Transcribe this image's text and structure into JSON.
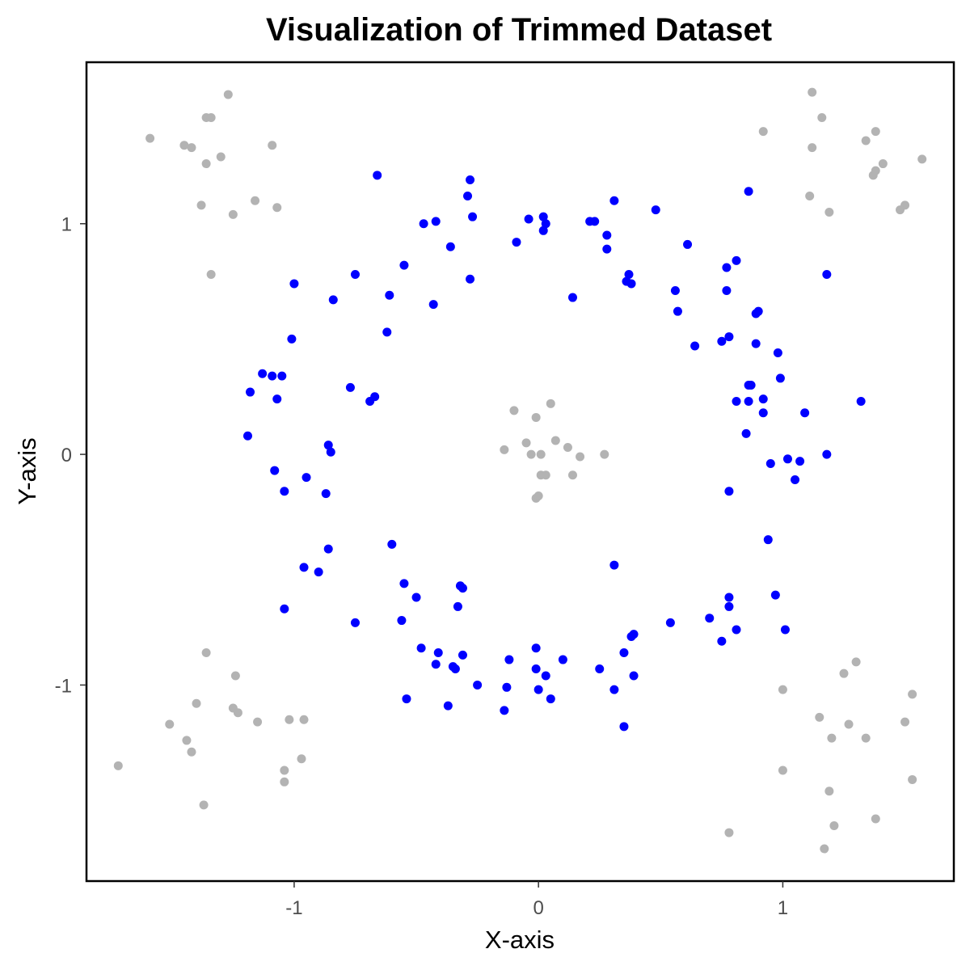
{
  "chart_data": {
    "type": "scatter",
    "title": "Visualization of Trimmed Dataset",
    "xlabel": "X-axis",
    "ylabel": "Y-axis",
    "xlim": [
      -1.85,
      1.7
    ],
    "ylim": [
      -1.85,
      1.7
    ],
    "xticks": [
      -1,
      0,
      1
    ],
    "yticks": [
      -1,
      0,
      1
    ],
    "grid": false,
    "legend": "none",
    "series": [
      {
        "color": "#0000ff",
        "points": [
          [
            -0.66,
            1.21
          ],
          [
            -0.28,
            1.19
          ],
          [
            -0.29,
            1.12
          ],
          [
            -0.27,
            1.03
          ],
          [
            -0.42,
            1.01
          ],
          [
            -0.47,
            1.0
          ],
          [
            -0.36,
            0.9
          ],
          [
            -0.55,
            0.82
          ],
          [
            -0.28,
            0.76
          ],
          [
            -0.75,
            0.78
          ],
          [
            -1.0,
            0.74
          ],
          [
            -0.84,
            0.67
          ],
          [
            -0.61,
            0.69
          ],
          [
            -0.43,
            0.65
          ],
          [
            -0.62,
            0.53
          ],
          [
            -1.01,
            0.5
          ],
          [
            -1.13,
            0.35
          ],
          [
            -1.09,
            0.34
          ],
          [
            -1.05,
            0.34
          ],
          [
            -1.18,
            0.27
          ],
          [
            -1.07,
            0.24
          ],
          [
            -0.77,
            0.29
          ],
          [
            -0.67,
            0.25
          ],
          [
            -0.69,
            0.23
          ],
          [
            -1.19,
            0.08
          ],
          [
            -0.86,
            0.04
          ],
          [
            -0.85,
            0.01
          ],
          [
            -1.08,
            -0.07
          ],
          [
            -0.95,
            -0.1
          ],
          [
            -1.04,
            -0.16
          ],
          [
            -0.87,
            -0.17
          ],
          [
            -0.86,
            -0.41
          ],
          [
            -0.6,
            -0.39
          ],
          [
            -0.96,
            -0.49
          ],
          [
            -0.9,
            -0.51
          ],
          [
            -1.04,
            -0.67
          ],
          [
            -0.75,
            -0.73
          ],
          [
            -0.55,
            -0.56
          ],
          [
            -0.5,
            -0.62
          ],
          [
            -0.56,
            -0.72
          ],
          [
            -0.32,
            -0.57
          ],
          [
            -0.31,
            -0.58
          ],
          [
            -0.33,
            -0.66
          ],
          [
            -0.48,
            -0.84
          ],
          [
            -0.41,
            -0.86
          ],
          [
            -0.42,
            -0.91
          ],
          [
            -0.35,
            -0.92
          ],
          [
            -0.34,
            -0.93
          ],
          [
            -0.31,
            -0.87
          ],
          [
            -0.25,
            -1.0
          ],
          [
            -0.37,
            -1.09
          ],
          [
            -0.54,
            -1.06
          ],
          [
            -0.12,
            -0.89
          ],
          [
            -0.13,
            -1.01
          ],
          [
            -0.14,
            -1.11
          ],
          [
            -0.01,
            -0.84
          ],
          [
            -0.01,
            -0.93
          ],
          [
            0.03,
            -0.96
          ],
          [
            0.0,
            -1.02
          ],
          [
            0.05,
            -1.06
          ],
          [
            0.1,
            -0.89
          ],
          [
            0.25,
            -0.93
          ],
          [
            0.31,
            -1.02
          ],
          [
            0.35,
            -1.18
          ],
          [
            0.35,
            -0.86
          ],
          [
            0.38,
            -0.79
          ],
          [
            0.39,
            -0.78
          ],
          [
            0.39,
            -0.96
          ],
          [
            0.31,
            -0.48
          ],
          [
            0.54,
            -0.73
          ],
          [
            0.7,
            -0.71
          ],
          [
            0.75,
            -0.81
          ],
          [
            0.78,
            -0.62
          ],
          [
            0.78,
            -0.66
          ],
          [
            0.81,
            -0.76
          ],
          [
            0.97,
            -0.61
          ],
          [
            1.01,
            -0.76
          ],
          [
            0.94,
            -0.37
          ],
          [
            0.78,
            -0.16
          ],
          [
            0.95,
            -0.04
          ],
          [
            1.02,
            -0.02
          ],
          [
            1.07,
            -0.03
          ],
          [
            1.05,
            -0.11
          ],
          [
            1.18,
            0.0
          ],
          [
            0.85,
            0.09
          ],
          [
            0.81,
            0.23
          ],
          [
            0.86,
            0.23
          ],
          [
            0.92,
            0.24
          ],
          [
            0.92,
            0.18
          ],
          [
            1.09,
            0.18
          ],
          [
            1.32,
            0.23
          ],
          [
            0.86,
            0.3
          ],
          [
            0.87,
            0.3
          ],
          [
            0.99,
            0.33
          ],
          [
            0.98,
            0.44
          ],
          [
            0.89,
            0.48
          ],
          [
            0.75,
            0.49
          ],
          [
            0.78,
            0.51
          ],
          [
            0.64,
            0.47
          ],
          [
            0.89,
            0.61
          ],
          [
            0.9,
            0.62
          ],
          [
            0.57,
            0.62
          ],
          [
            0.56,
            0.71
          ],
          [
            0.77,
            0.71
          ],
          [
            0.36,
            0.75
          ],
          [
            0.37,
            0.78
          ],
          [
            0.38,
            0.74
          ],
          [
            0.77,
            0.81
          ],
          [
            0.81,
            0.84
          ],
          [
            1.18,
            0.78
          ],
          [
            0.61,
            0.91
          ],
          [
            0.28,
            0.89
          ],
          [
            0.28,
            0.95
          ],
          [
            0.21,
            1.01
          ],
          [
            0.23,
            1.01
          ],
          [
            0.31,
            1.1
          ],
          [
            0.48,
            1.06
          ],
          [
            0.86,
            1.14
          ],
          [
            0.02,
            1.03
          ],
          [
            0.03,
            1.0
          ],
          [
            0.02,
            0.97
          ],
          [
            -0.04,
            1.02
          ],
          [
            -0.09,
            0.92
          ],
          [
            0.14,
            0.68
          ]
        ]
      },
      {
        "color": "#b3b3b3",
        "points": [
          [
            -1.59,
            1.37
          ],
          [
            -1.45,
            1.34
          ],
          [
            -1.42,
            1.33
          ],
          [
            -1.36,
            1.46
          ],
          [
            -1.34,
            1.46
          ],
          [
            -1.27,
            1.56
          ],
          [
            -1.36,
            1.26
          ],
          [
            -1.3,
            1.29
          ],
          [
            -1.09,
            1.34
          ],
          [
            -1.38,
            1.08
          ],
          [
            -1.25,
            1.04
          ],
          [
            -1.16,
            1.1
          ],
          [
            -1.07,
            1.07
          ],
          [
            -1.34,
            0.78
          ],
          [
            0.92,
            1.4
          ],
          [
            1.12,
            1.57
          ],
          [
            1.16,
            1.46
          ],
          [
            1.12,
            1.33
          ],
          [
            1.34,
            1.36
          ],
          [
            1.38,
            1.4
          ],
          [
            1.41,
            1.26
          ],
          [
            1.37,
            1.21
          ],
          [
            1.38,
            1.23
          ],
          [
            1.57,
            1.28
          ],
          [
            1.11,
            1.12
          ],
          [
            1.19,
            1.05
          ],
          [
            1.5,
            1.08
          ],
          [
            1.48,
            1.06
          ],
          [
            -0.14,
            0.02
          ],
          [
            -0.1,
            0.19
          ],
          [
            -0.05,
            0.05
          ],
          [
            -0.03,
            0.0
          ],
          [
            -0.01,
            0.16
          ],
          [
            0.01,
            0.0
          ],
          [
            0.01,
            -0.09
          ],
          [
            0.03,
            -0.09
          ],
          [
            0.05,
            0.22
          ],
          [
            0.07,
            0.06
          ],
          [
            0.12,
            0.03
          ],
          [
            0.14,
            -0.09
          ],
          [
            0.17,
            -0.01
          ],
          [
            0.27,
            0.0
          ],
          [
            -0.01,
            -0.19
          ],
          [
            0.0,
            -0.18
          ],
          [
            -1.36,
            -0.86
          ],
          [
            -1.24,
            -0.96
          ],
          [
            -1.4,
            -1.08
          ],
          [
            -1.25,
            -1.1
          ],
          [
            -1.23,
            -1.12
          ],
          [
            -1.15,
            -1.16
          ],
          [
            -1.02,
            -1.15
          ],
          [
            -0.96,
            -1.15
          ],
          [
            -1.51,
            -1.17
          ],
          [
            -1.44,
            -1.24
          ],
          [
            -1.42,
            -1.29
          ],
          [
            -0.97,
            -1.32
          ],
          [
            -1.04,
            -1.37
          ],
          [
            -1.04,
            -1.42
          ],
          [
            -1.72,
            -1.35
          ],
          [
            -1.37,
            -1.52
          ],
          [
            1.0,
            -1.02
          ],
          [
            1.25,
            -0.95
          ],
          [
            1.3,
            -0.9
          ],
          [
            1.15,
            -1.14
          ],
          [
            1.27,
            -1.17
          ],
          [
            1.2,
            -1.23
          ],
          [
            1.34,
            -1.23
          ],
          [
            1.5,
            -1.16
          ],
          [
            1.53,
            -1.04
          ],
          [
            1.0,
            -1.37
          ],
          [
            1.19,
            -1.46
          ],
          [
            1.53,
            -1.41
          ],
          [
            1.38,
            -1.58
          ],
          [
            1.21,
            -1.61
          ],
          [
            0.78,
            -1.64
          ],
          [
            1.17,
            -1.71
          ]
        ]
      }
    ]
  }
}
